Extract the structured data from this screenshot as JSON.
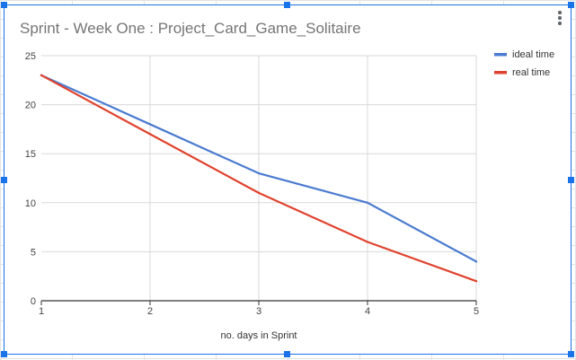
{
  "chart_data": {
    "type": "line",
    "title": "Sprint - Week One : Project_Card_Game_Solitaire",
    "xlabel": "no. days in Sprint",
    "ylabel": "",
    "x": [
      1,
      2,
      3,
      4,
      5
    ],
    "xticks": [
      "1",
      "2",
      "3",
      "4",
      "5"
    ],
    "yticks": [
      "0",
      "5",
      "10",
      "15",
      "20",
      "25"
    ],
    "ylim": [
      0,
      25
    ],
    "xlim": [
      1,
      5
    ],
    "grid": true,
    "legend_position": "right",
    "series": [
      {
        "name": "ideal time",
        "color": "#4a7bd0",
        "values": [
          23,
          18,
          13,
          10,
          4
        ]
      },
      {
        "name": "real time",
        "color": "#e0432f",
        "values": [
          23,
          17,
          11,
          6,
          2
        ]
      }
    ]
  }
}
